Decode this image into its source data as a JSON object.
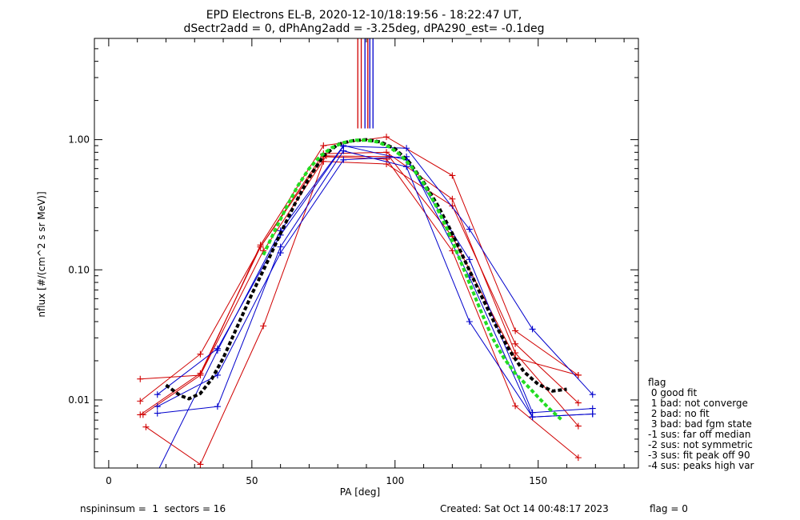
{
  "chart_data": {
    "type": "line",
    "title": "EPD Electrons EL-B, 2020-12-10/18:19:56 - 18:22:47 UT,",
    "subtitle": "dSectr2add = 0, dPhAng2add = -3.25deg, dPA290_est=  -0.1deg",
    "xlabel": "PA [deg]",
    "ylabel": "nflux [#/(cm^2 s sr MeV)]",
    "xlim": [
      -5,
      185
    ],
    "ylim": [
      0.003,
      6.0
    ],
    "yscale": "log",
    "xticks": [
      "0",
      "50",
      "100",
      "150"
    ],
    "xtick_values": [
      0,
      50,
      100,
      150
    ],
    "yticks": [
      "0.01",
      "0.10",
      "1.00"
    ],
    "ytick_values": [
      0.01,
      0.1,
      1.0
    ],
    "grid": false,
    "vertical_markers": [
      {
        "x": 87.0,
        "color": "#d00000"
      },
      {
        "x": 88.2,
        "color": "#d00000"
      },
      {
        "x": 89.5,
        "color": "#0000cc"
      },
      {
        "x": 90.5,
        "color": "#d00000"
      },
      {
        "x": 91.2,
        "color": "#0000cc"
      },
      {
        "x": 92.3,
        "color": "#0000cc"
      }
    ],
    "series": [
      {
        "color": "#d00000",
        "marker": "+",
        "x": [
          11,
          32,
          53,
          75,
          97,
          120,
          142,
          164
        ],
        "y": [
          0.0145,
          0.0155,
          0.155,
          0.9,
          1.05,
          0.53,
          0.034,
          0.0155
        ]
      },
      {
        "color": "#d00000",
        "marker": "+",
        "x": [
          11,
          32,
          53,
          75,
          97,
          120,
          142,
          164
        ],
        "y": [
          0.0098,
          0.0225,
          0.15,
          0.78,
          0.8,
          0.35,
          0.023,
          0.0063
        ]
      },
      {
        "color": "#d00000",
        "marker": "+",
        "x": [
          11,
          32,
          53,
          75,
          97,
          120,
          142,
          164
        ],
        "y": [
          0.0077,
          0.016,
          0.15,
          0.74,
          0.71,
          0.14,
          0.009,
          0.0036
        ]
      },
      {
        "color": "#d00000",
        "marker": "+",
        "x": [
          13,
          32,
          54,
          75,
          97,
          120,
          142,
          164
        ],
        "y": [
          0.0062,
          0.0032,
          0.037,
          0.68,
          0.65,
          0.31,
          0.027,
          0.0095
        ]
      },
      {
        "color": "#d00000",
        "marker": "+",
        "x": [
          12,
          32,
          54,
          76,
          98,
          120,
          142,
          164
        ],
        "y": [
          0.0077,
          0.0155,
          0.14,
          0.75,
          0.74,
          0.18,
          0.021,
          0.0155
        ]
      },
      {
        "color": "#0000cc",
        "marker": "+",
        "x": [
          17,
          38,
          60,
          82,
          104,
          126,
          148,
          169
        ],
        "y": [
          0.011,
          0.0248,
          0.185,
          0.89,
          0.86,
          0.205,
          0.035,
          0.011
        ]
      },
      {
        "color": "#0000cc",
        "marker": "+",
        "x": [
          17,
          38,
          60,
          82,
          104,
          126,
          148,
          169
        ],
        "y": [
          0.0089,
          0.0155,
          0.135,
          0.7,
          0.74,
          0.088,
          0.0074,
          0.0078
        ]
      },
      {
        "color": "#0000cc",
        "marker": "+",
        "x": [
          17,
          38,
          60,
          82,
          104,
          126,
          148,
          169
        ],
        "y": [
          0.0079,
          0.0089,
          0.15,
          0.82,
          0.62,
          0.04,
          0.0074,
          0.0078
        ]
      },
      {
        "color": "#0000cc",
        "marker": "+",
        "x": [
          17,
          38,
          60,
          82,
          104,
          126,
          148,
          169
        ],
        "y": [
          0.0028,
          0.024,
          0.2,
          0.9,
          0.7,
          0.12,
          0.008,
          0.0086
        ]
      },
      {
        "color": "#000000",
        "style": "dashed",
        "marker": "",
        "x": [
          20,
          25,
          28,
          32,
          36,
          40,
          45,
          50,
          55,
          60,
          65,
          70,
          75,
          80,
          85,
          90,
          95,
          100,
          105,
          110,
          115,
          120,
          125,
          130,
          135,
          140,
          145,
          150,
          155,
          160
        ],
        "y": [
          0.013,
          0.0108,
          0.0102,
          0.0112,
          0.0145,
          0.021,
          0.037,
          0.065,
          0.11,
          0.19,
          0.32,
          0.51,
          0.75,
          0.92,
          0.98,
          1.0,
          0.96,
          0.85,
          0.67,
          0.47,
          0.31,
          0.19,
          0.11,
          0.064,
          0.038,
          0.024,
          0.0165,
          0.0132,
          0.0117,
          0.0121
        ]
      },
      {
        "color": "#22dd22",
        "style": "dashed",
        "marker": "",
        "x": [
          54,
          58,
          62,
          66,
          70,
          74,
          78,
          82,
          86,
          90,
          94,
          98,
          102,
          106,
          110,
          114,
          118,
          122,
          126,
          130,
          134,
          138,
          142,
          146,
          150,
          154,
          158
        ],
        "y": [
          0.13,
          0.2,
          0.3,
          0.44,
          0.6,
          0.75,
          0.87,
          0.95,
          0.99,
          0.99,
          0.96,
          0.88,
          0.76,
          0.61,
          0.46,
          0.32,
          0.21,
          0.13,
          0.079,
          0.048,
          0.03,
          0.021,
          0.016,
          0.013,
          0.0105,
          0.0085,
          0.0071
        ]
      }
    ]
  },
  "legend": {
    "title": "flag",
    "items": [
      " 0 good fit",
      " 1 bad: not converge",
      " 2 bad: no fit",
      " 3 bad: bad fgm state",
      "-1 sus: far off median",
      "-2 sus: not symmetric",
      "-3 sus: fit peak off 90",
      "-4 sus: peaks high var"
    ]
  },
  "footer": {
    "left": "nspininsum =  1  sectors = 16",
    "created": "Created: Sat Oct 14 00:48:17 2023",
    "flag": "flag = 0"
  }
}
